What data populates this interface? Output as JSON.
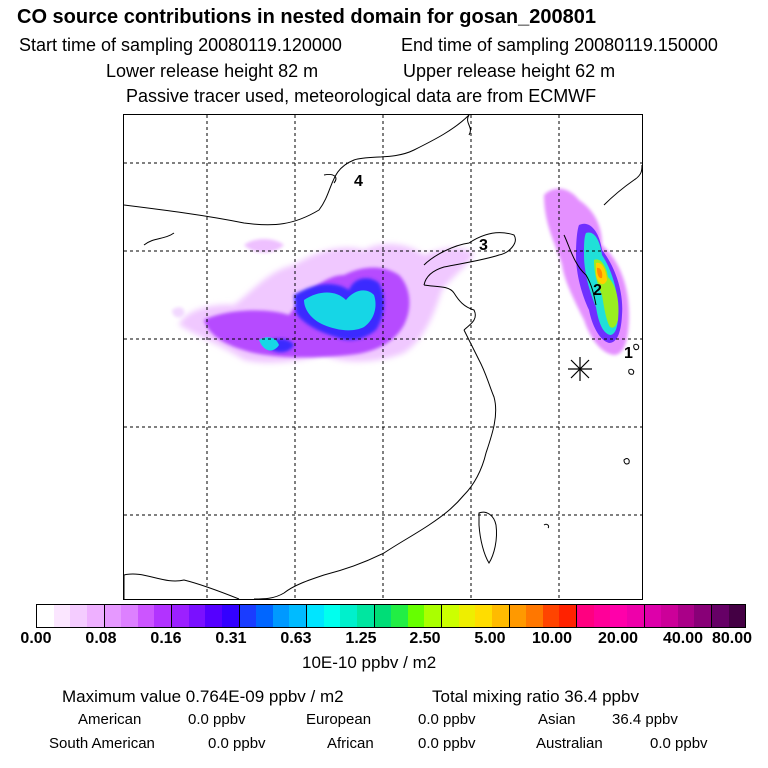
{
  "header": {
    "title": "CO  source contributions in nested domain for gosan_200801",
    "start_label": "Start time of sampling 20080119.120000",
    "end_label": "End time of sampling 20080119.150000",
    "lower_label": "Lower release height   82 m",
    "upper_label": "Upper release height   62 m",
    "tracer_label": "Passive tracer used, meteorological data are from ECMWF"
  },
  "map": {
    "markers": [
      "1",
      "2",
      "3",
      "4"
    ],
    "receptor_symbol": "asterisk-icon"
  },
  "colorbar": {
    "ticks": [
      "0.00",
      "0.08",
      "0.16",
      "0.31",
      "0.63",
      "1.25",
      "2.50",
      "5.00",
      "10.00",
      "20.00",
      "40.00",
      "80.00"
    ],
    "unit": "10E-10 ppbv / m2",
    "colors": [
      "#ffffff",
      "#fbe6ff",
      "#f4ccff",
      "#eeb0ff",
      "#e699ff",
      "#dd80ff",
      "#cc55ff",
      "#b233ff",
      "#9c20ff",
      "#7a10ff",
      "#5500ff",
      "#3300ff",
      "#1a3cff",
      "#0066ff",
      "#0099ff",
      "#00bbff",
      "#00e5ff",
      "#00ffee",
      "#00f0cc",
      "#00e6a0",
      "#00dd77",
      "#22ee44",
      "#66ff00",
      "#aaff00",
      "#ccff00",
      "#eeee00",
      "#ffdd00",
      "#ffbb00",
      "#ff9900",
      "#ff7700",
      "#ff4400",
      "#ff2200",
      "#ff0080",
      "#ff0099",
      "#ff00aa",
      "#ee00aa",
      "#dd00aa",
      "#cc0099",
      "#aa0088",
      "#880077",
      "#660066",
      "#440044"
    ]
  },
  "summary": {
    "max_label": "Maximum value  0.764E-09 ppbv / m2",
    "total_label": "Total mixing ratio      36.4 ppbv",
    "american": "American",
    "american_val": "0.0 ppbv",
    "european": "European",
    "european_val": "0.0 ppbv",
    "asian": "Asian",
    "asian_val": "36.4 ppbv",
    "south_american": "South American",
    "south_american_val": "0.0 ppbv",
    "african": "African",
    "african_val": "0.0 ppbv",
    "australian": "Australian",
    "australian_val": "0.0 ppbv"
  }
}
